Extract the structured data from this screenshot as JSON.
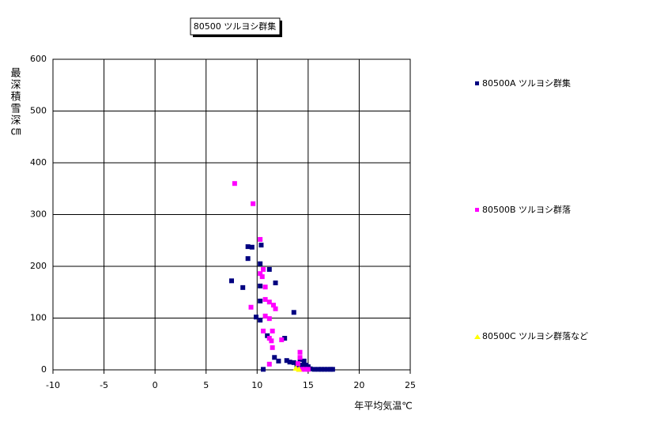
{
  "chart_data": {
    "type": "scatter",
    "title": "80500 ツルヨシ群集",
    "x_label": "年平均気温℃",
    "y_label": "最深積雪深㎝",
    "xlim": [
      -10,
      25
    ],
    "xticks": [
      -10,
      -5,
      0,
      5,
      10,
      15,
      20,
      25
    ],
    "ylim": [
      0,
      600
    ],
    "yticks": [
      0,
      100,
      200,
      300,
      400,
      500,
      600
    ],
    "grid": true,
    "legend": "right",
    "series": [
      {
        "name": "80500A ツルヨシ群集",
        "color": "#000080",
        "marker": "square",
        "x": [
          7.5,
          8.6,
          9.1,
          9.5,
          9.1,
          10.4,
          10.3,
          10.3,
          11.2,
          11.8,
          10.3,
          9.9,
          10.3,
          11.0,
          11.7,
          12.1,
          12.7,
          13.6,
          10.6,
          12.9,
          13.2,
          13.6,
          13.9,
          14.2,
          14.6,
          14.8,
          15.0,
          15.2,
          15.6,
          16.0,
          16.3,
          16.6,
          16.9,
          17.2,
          17.4,
          13.9,
          14.4
        ],
        "values": [
          172,
          159,
          238,
          237,
          215,
          241,
          205,
          162,
          194,
          168,
          133,
          102,
          96,
          66,
          24,
          17,
          61,
          111,
          1,
          18,
          15,
          14,
          11,
          20,
          17,
          9,
          6,
          2,
          1,
          1,
          1,
          1,
          1,
          1,
          1,
          6,
          9
        ]
      },
      {
        "name": "80500B ツルヨシ群落",
        "color": "#ff00ff",
        "marker": "square",
        "x": [
          7.8,
          9.6,
          10.3,
          10.6,
          10.3,
          10.5,
          10.8,
          10.8,
          11.2,
          11.6,
          11.8,
          9.4,
          10.8,
          11.2,
          10.6,
          11.5,
          11.2,
          11.4,
          11.5,
          12.4,
          11.2,
          14.2,
          14.2,
          14.1,
          14.4,
          14.7,
          15.0,
          14.0
        ],
        "values": [
          360,
          321,
          252,
          194,
          186,
          180,
          160,
          136,
          131,
          125,
          118,
          121,
          104,
          99,
          75,
          75,
          61,
          56,
          43,
          58,
          11,
          34,
          24,
          1,
          1,
          1,
          1,
          12
        ]
      },
      {
        "name": "80500C ツルヨシ群落など",
        "color": "#ffff00",
        "marker": "triangle",
        "x": [
          13.8,
          14.1
        ],
        "values": [
          3,
          1
        ]
      }
    ]
  }
}
